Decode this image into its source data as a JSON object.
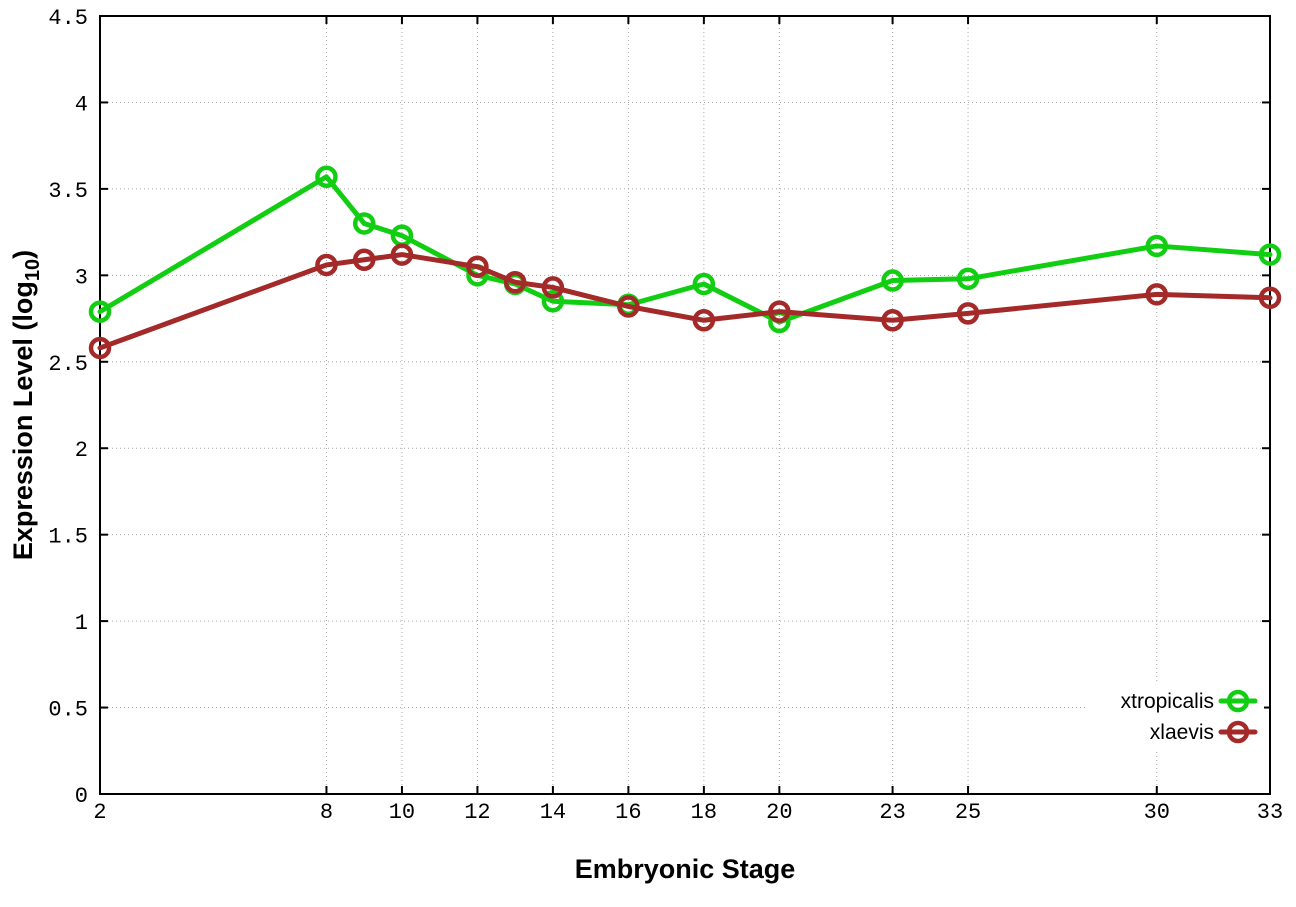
{
  "chart_data": {
    "type": "line",
    "title": "",
    "xlabel": "Embryonic Stage",
    "ylabel": "Expression Level (log10)",
    "ylabel_parts": {
      "prefix": "Expression Level (log",
      "sub": "10",
      "suffix": ")"
    },
    "x": [
      2,
      8,
      9,
      10,
      12,
      13,
      14,
      16,
      18,
      20,
      23,
      25,
      30,
      33
    ],
    "series": [
      {
        "name": "xtropicalis",
        "color": "#12ce12",
        "values": [
          2.79,
          3.57,
          3.3,
          3.23,
          3.0,
          2.95,
          2.85,
          2.83,
          2.95,
          2.73,
          2.97,
          2.98,
          3.17,
          3.12
        ]
      },
      {
        "name": "xlaevis",
        "color": "#a42a2a",
        "values": [
          2.58,
          3.06,
          3.09,
          3.12,
          3.05,
          2.96,
          2.93,
          2.82,
          2.74,
          2.79,
          2.74,
          2.78,
          2.89,
          2.87
        ]
      }
    ],
    "xticks": [
      2,
      8,
      10,
      12,
      14,
      16,
      18,
      20,
      23,
      25,
      30,
      33
    ],
    "yticks": [
      0,
      0.5,
      1,
      1.5,
      2,
      2.5,
      3,
      3.5,
      4,
      4.5
    ],
    "xlim": [
      2,
      33
    ],
    "ylim": [
      0,
      4.5
    ],
    "grid": true,
    "legend_position": "bottom-right",
    "marker": "open-circle",
    "colors": {
      "background": "#ffffff",
      "border": "#000000",
      "grid": "#aaaaaa",
      "tick_text": "#000000"
    }
  }
}
